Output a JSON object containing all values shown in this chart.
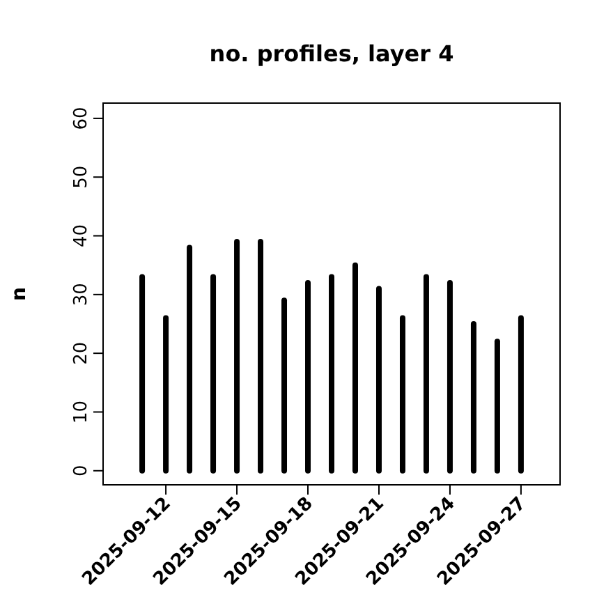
{
  "chart_data": {
    "type": "bar",
    "title": "no. profiles, layer 4",
    "ylabel": "n",
    "x": [
      "2025-09-11",
      "2025-09-12",
      "2025-09-13",
      "2025-09-14",
      "2025-09-15",
      "2025-09-16",
      "2025-09-17",
      "2025-09-18",
      "2025-09-19",
      "2025-09-20",
      "2025-09-21",
      "2025-09-22",
      "2025-09-23",
      "2025-09-24",
      "2025-09-25",
      "2025-09-26",
      "2025-09-27"
    ],
    "values": [
      33,
      26,
      38,
      33,
      39,
      39,
      29,
      32,
      33,
      35,
      31,
      26,
      33,
      32,
      25,
      22,
      26
    ],
    "color": "#000000",
    "xlim": [
      "2025-09-09T08:24",
      "2025-09-28T15:36"
    ],
    "xticks": [
      {
        "value": "2025-09-12",
        "label": "2025-09-12"
      },
      {
        "value": "2025-09-15",
        "label": "2025-09-15"
      },
      {
        "value": "2025-09-18",
        "label": "2025-09-18"
      },
      {
        "value": "2025-09-21",
        "label": "2025-09-21"
      },
      {
        "value": "2025-09-24",
        "label": "2025-09-24"
      },
      {
        "value": "2025-09-27",
        "label": "2025-09-27"
      }
    ],
    "ylim": [
      -2.4,
      62.6
    ],
    "yticks": [
      0,
      10,
      20,
      30,
      40,
      50,
      60
    ],
    "grid": false
  }
}
